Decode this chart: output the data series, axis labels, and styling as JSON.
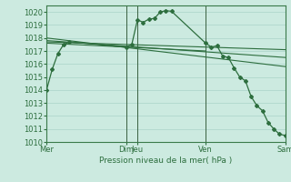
{
  "bg_color": "#cceae0",
  "grid_color": "#aad4c8",
  "line_color": "#2d6e3e",
  "ylabel": "Pression niveau de la mer( hPa )",
  "ylim": [
    1010,
    1020.5
  ],
  "ytick_vals": [
    1010,
    1011,
    1012,
    1013,
    1014,
    1015,
    1016,
    1017,
    1018,
    1019,
    1020
  ],
  "xlim": [
    0,
    21
  ],
  "xtick_positions": [
    0,
    7,
    8,
    14,
    21
  ],
  "xtick_labels": [
    "Mer",
    "Dim",
    "Jeu",
    "Ven",
    "Sam"
  ],
  "vline_positions": [
    0,
    7,
    8,
    14,
    21
  ],
  "line_with_markers": {
    "x": [
      0,
      0.5,
      1,
      1.5,
      2,
      7,
      7.5,
      8,
      8.5,
      9,
      9.5,
      10,
      10.5,
      11,
      14,
      14.5,
      15,
      15.5,
      16,
      16.5,
      17,
      17.5,
      18,
      18.5,
      19,
      19.5,
      20,
      20.5,
      21
    ],
    "y": [
      1014.0,
      1015.6,
      1016.8,
      1017.5,
      1017.7,
      1017.3,
      1017.5,
      1019.4,
      1019.2,
      1019.45,
      1019.5,
      1020.0,
      1020.1,
      1020.05,
      1017.6,
      1017.3,
      1017.4,
      1016.6,
      1016.5,
      1015.7,
      1015.0,
      1014.7,
      1013.5,
      1012.8,
      1012.4,
      1011.5,
      1011.0,
      1010.6,
      1010.5
    ]
  },
  "straight_lines": [
    {
      "x": [
        0,
        21
      ],
      "y": [
        1017.8,
        1016.5
      ]
    },
    {
      "x": [
        0,
        21
      ],
      "y": [
        1018.0,
        1015.8
      ]
    },
    {
      "x": [
        0,
        21
      ],
      "y": [
        1017.7,
        1017.1
      ]
    },
    {
      "x": [
        0,
        14
      ],
      "y": [
        1017.6,
        1017.0
      ]
    }
  ],
  "curved_line": {
    "x": [
      0,
      0.5,
      1,
      1.5,
      2,
      7,
      7.5,
      8,
      8.5,
      9,
      9.5,
      10,
      10.5,
      11,
      14,
      14.5,
      15,
      15.5,
      16,
      16.5,
      17,
      17.5,
      18,
      18.5,
      19,
      19.5,
      20,
      20.5,
      21
    ],
    "y": [
      1014.0,
      1015.6,
      1016.8,
      1017.5,
      1017.7,
      1017.3,
      1017.5,
      1019.4,
      1019.2,
      1019.45,
      1019.5,
      1020.0,
      1020.1,
      1020.05,
      1017.6,
      1017.3,
      1017.4,
      1016.6,
      1016.5,
      1015.7,
      1015.0,
      1014.7,
      1013.5,
      1012.8,
      1012.4,
      1011.5,
      1011.0,
      1010.6,
      1010.5
    ]
  }
}
